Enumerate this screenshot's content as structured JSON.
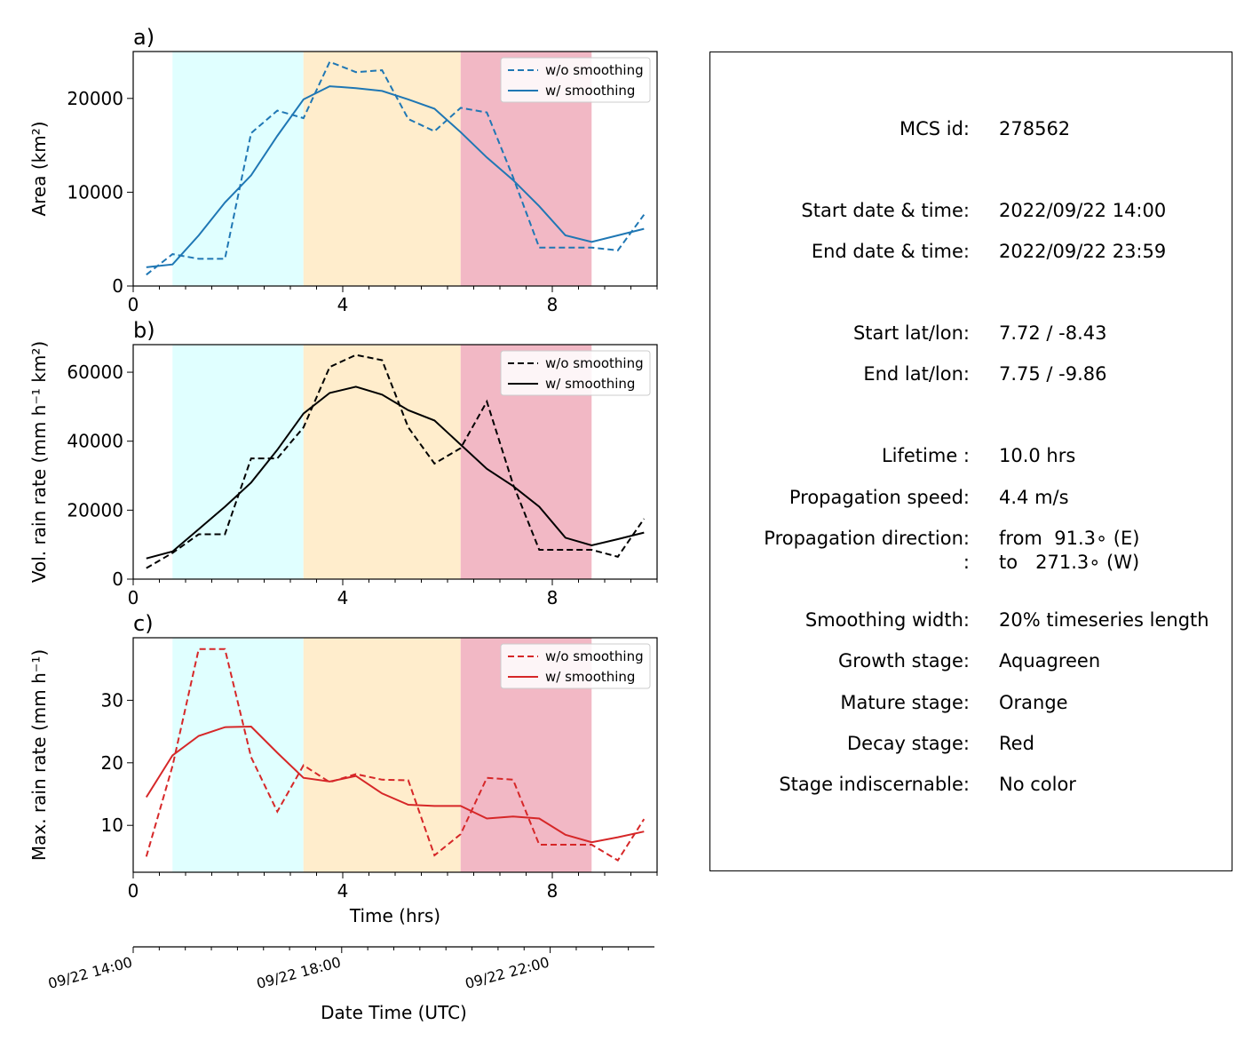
{
  "chart_data": [
    {
      "type": "line",
      "panel_label": "a)",
      "ylabel": "Area  (km²)",
      "xlim": [
        0,
        10
      ],
      "ylim": [
        0,
        25000
      ],
      "xticks": [
        0,
        4,
        8
      ],
      "yticks": [
        0,
        10000,
        20000
      ],
      "color": "#1f77b4",
      "legend": "top-right",
      "series": [
        {
          "name": "w/o smoothing",
          "style": "dashed",
          "x": [
            0.25,
            0.75,
            1.25,
            1.75,
            2.25,
            2.75,
            3.25,
            3.75,
            4.25,
            4.75,
            5.25,
            5.75,
            6.25,
            6.75,
            7.25,
            7.75,
            8.25,
            8.75,
            9.25,
            9.75
          ],
          "y": [
            1200,
            3400,
            2900,
            2900,
            16300,
            18700,
            17900,
            23900,
            22800,
            23000,
            17800,
            16500,
            19000,
            18500,
            11600,
            4100,
            4100,
            4100,
            3800,
            7600
          ]
        },
        {
          "name": "w/ smoothing",
          "style": "solid",
          "x": [
            0.25,
            0.75,
            1.25,
            1.75,
            2.25,
            2.75,
            3.25,
            3.75,
            4.25,
            4.75,
            5.25,
            5.75,
            6.25,
            6.75,
            7.25,
            7.75,
            8.25,
            8.75,
            9.25,
            9.75
          ],
          "y": [
            2000,
            2300,
            5400,
            8900,
            11800,
            16000,
            19900,
            21300,
            21100,
            20800,
            19900,
            18900,
            16400,
            13700,
            11300,
            8500,
            5400,
            4700,
            5400,
            6100
          ]
        }
      ]
    },
    {
      "type": "line",
      "panel_label": "b)",
      "ylabel": "Vol. rain rate (mm h⁻¹ km²)",
      "xlim": [
        0,
        10
      ],
      "ylim": [
        0,
        68000
      ],
      "xticks": [
        0,
        4,
        8
      ],
      "yticks": [
        0,
        20000,
        40000,
        60000
      ],
      "color": "#000000",
      "legend": "top-right",
      "series": [
        {
          "name": "w/o smoothing",
          "style": "dashed",
          "x": [
            0.25,
            0.75,
            1.25,
            1.75,
            2.25,
            2.75,
            3.25,
            3.75,
            4.25,
            4.75,
            5.25,
            5.75,
            6.25,
            6.75,
            7.25,
            7.75,
            8.25,
            8.75,
            9.25,
            9.75
          ],
          "y": [
            3200,
            7600,
            13000,
            13000,
            35000,
            35000,
            44000,
            61500,
            65000,
            63500,
            44000,
            33500,
            38000,
            51500,
            27500,
            8500,
            8500,
            8500,
            6500,
            17500
          ]
        },
        {
          "name": "w/ smoothing",
          "style": "solid",
          "x": [
            0.25,
            0.75,
            1.25,
            1.75,
            2.25,
            2.75,
            3.25,
            3.75,
            4.25,
            4.75,
            5.25,
            5.75,
            6.25,
            6.75,
            7.25,
            7.75,
            8.25,
            8.75,
            9.25,
            9.75
          ],
          "y": [
            6000,
            8000,
            14500,
            21000,
            28000,
            37500,
            48000,
            54000,
            55800,
            53500,
            49000,
            46000,
            39000,
            32000,
            27000,
            21000,
            12000,
            9800,
            11600,
            13500
          ]
        }
      ]
    },
    {
      "type": "line",
      "panel_label": "c)",
      "ylabel": "Max. rain rate  (mm h⁻¹)",
      "xlabel": "Time (hrs)",
      "xlim": [
        0,
        10
      ],
      "ylim": [
        2.5,
        40
      ],
      "xticks": [
        0,
        4,
        8
      ],
      "yticks": [
        10,
        20,
        30
      ],
      "color": "#d62728",
      "legend": "top-right",
      "series": [
        {
          "name": "w/o smoothing",
          "style": "dashed",
          "x": [
            0.25,
            0.75,
            1.25,
            1.75,
            2.25,
            2.75,
            3.25,
            3.75,
            4.25,
            4.75,
            5.25,
            5.75,
            6.25,
            6.75,
            7.25,
            7.75,
            8.25,
            8.75,
            9.25,
            9.75
          ],
          "y": [
            5.0,
            19.5,
            38.2,
            38.2,
            20.9,
            12.2,
            19.6,
            16.9,
            18.2,
            17.3,
            17.2,
            5.2,
            8.6,
            17.6,
            17.3,
            6.9,
            6.9,
            6.9,
            4.4,
            11.0
          ]
        },
        {
          "name": "w/ smoothing",
          "style": "solid",
          "x": [
            0.25,
            0.75,
            1.25,
            1.75,
            2.25,
            2.75,
            3.25,
            3.75,
            4.25,
            4.75,
            5.25,
            5.75,
            6.25,
            6.75,
            7.25,
            7.75,
            8.25,
            8.75,
            9.25,
            9.75
          ],
          "y": [
            14.5,
            21.2,
            24.3,
            25.7,
            25.8,
            21.6,
            17.6,
            17.0,
            17.9,
            15.1,
            13.3,
            13.1,
            13.1,
            11.1,
            11.4,
            11.1,
            8.5,
            7.3,
            8.1,
            9.0
          ]
        }
      ]
    }
  ],
  "stages": [
    {
      "name": "Growth stage",
      "color": "#e0ffff",
      "x0": 0.75,
      "x1": 3.25
    },
    {
      "name": "Mature stage",
      "color": "#ffedcc",
      "x0": 3.25,
      "x1": 6.25
    },
    {
      "name": "Decay stage",
      "color": "#f2b8c5",
      "x0": 6.25,
      "x1": 8.75
    }
  ],
  "datetime_axis": {
    "label": "Date Time (UTC)",
    "tick_labels": [
      "09/22 14:00",
      "09/22 18:00",
      "09/22 22:00"
    ],
    "tick_hours": [
      0,
      4,
      8
    ]
  },
  "info": [
    {
      "label": "MCS id:",
      "value": "278562"
    },
    {
      "label": "Start date & time:",
      "value": "2022/09/22 14:00"
    },
    {
      "label": "End date & time:",
      "value": "2022/09/22 23:59"
    },
    {
      "label": "Start lat/lon:",
      "value": "7.72 / -8.43"
    },
    {
      "label": "End lat/lon:",
      "value": "7.75 / -9.86"
    },
    {
      "label": "Lifetime :",
      "value": "10.0 hrs"
    },
    {
      "label": "Propagation speed:",
      "value": "4.4 m/s"
    },
    {
      "label": "Propagation direction:",
      "value": "from  91.3∘ (E)"
    },
    {
      "label": ":",
      "value": "to   271.3∘ (W)"
    },
    {
      "label": "Smoothing width:",
      "value": "20% timeseries length"
    },
    {
      "label": "Growth stage:",
      "value": "Aquagreen"
    },
    {
      "label": "Mature stage:",
      "value": "Orange"
    },
    {
      "label": "Decay stage:",
      "value": "Red"
    },
    {
      "label": "Stage indiscernable:",
      "value": "No color"
    }
  ]
}
